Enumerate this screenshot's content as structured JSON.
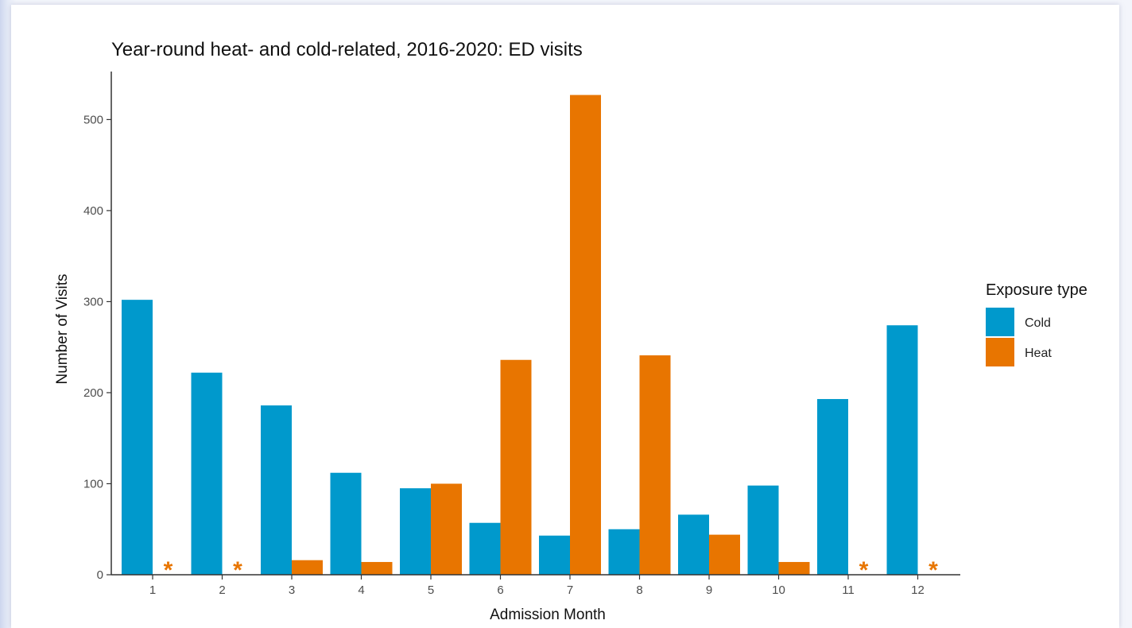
{
  "chart_data": {
    "type": "bar",
    "title": "Year-round heat- and cold-related, 2016-2020: ED visits",
    "xlabel": "Admission Month",
    "ylabel": "Number of Visits",
    "categories": [
      "1",
      "2",
      "3",
      "4",
      "5",
      "6",
      "7",
      "8",
      "9",
      "10",
      "11",
      "12"
    ],
    "series": [
      {
        "name": "Cold",
        "color": "#0099cc",
        "values": [
          302,
          222,
          186,
          112,
          95,
          57,
          43,
          50,
          66,
          98,
          193,
          274
        ]
      },
      {
        "name": "Heat",
        "color": "#e87500",
        "values": [
          null,
          null,
          16,
          14,
          100,
          236,
          527,
          241,
          44,
          14,
          null,
          null
        ]
      }
    ],
    "suppressed_marker": "*",
    "ylim": [
      0,
      550
    ],
    "yticks": [
      0,
      100,
      200,
      300,
      400,
      500
    ],
    "grid": false,
    "legend": {
      "title": "Exposure type",
      "position": "right"
    }
  }
}
